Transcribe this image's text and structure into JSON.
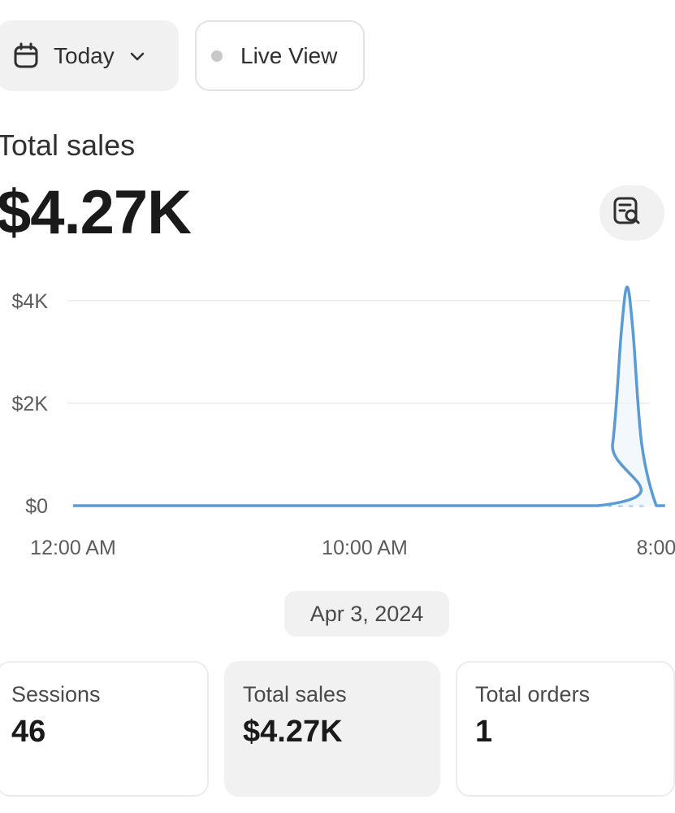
{
  "toolbar": {
    "date_range_label": "Today",
    "live_view_label": "Live View"
  },
  "metric": {
    "title": "Total sales",
    "value": "$4.27K"
  },
  "icons": {
    "date_range": "calendar-icon",
    "dropdown": "chevron-down-icon",
    "live_status": "status-dot-icon",
    "explore": "report-search-icon"
  },
  "colors": {
    "series_line": "#5b9bd5",
    "comparison_line": "#9cc3e6",
    "grid": "#ececec"
  },
  "chart_data": {
    "type": "line",
    "y_ticks": [
      "$4K",
      "$2K",
      "$0"
    ],
    "y_tick_values": [
      4000,
      2000,
      0
    ],
    "x_ticks": [
      "12:00 AM",
      "10:00 AM",
      "8:00"
    ],
    "x_tick_hours": [
      0,
      10,
      20
    ],
    "ylim": [
      0,
      4000
    ],
    "series": [
      {
        "x": [
          0,
          18,
          18.5,
          18.8,
          19,
          19.2,
          19.5,
          20,
          20.3
        ],
        "y": [
          0,
          0,
          1200,
          3400,
          4270,
          3400,
          1200,
          0,
          0
        ]
      }
    ],
    "comparison_dotted_from_hour": 18
  },
  "period": {
    "date_label": "Apr 3, 2024"
  },
  "cards": [
    {
      "label": "Sessions",
      "value": "46"
    },
    {
      "label": "Total sales",
      "value": "$4.27K"
    },
    {
      "label": "Total orders",
      "value": "1"
    }
  ]
}
